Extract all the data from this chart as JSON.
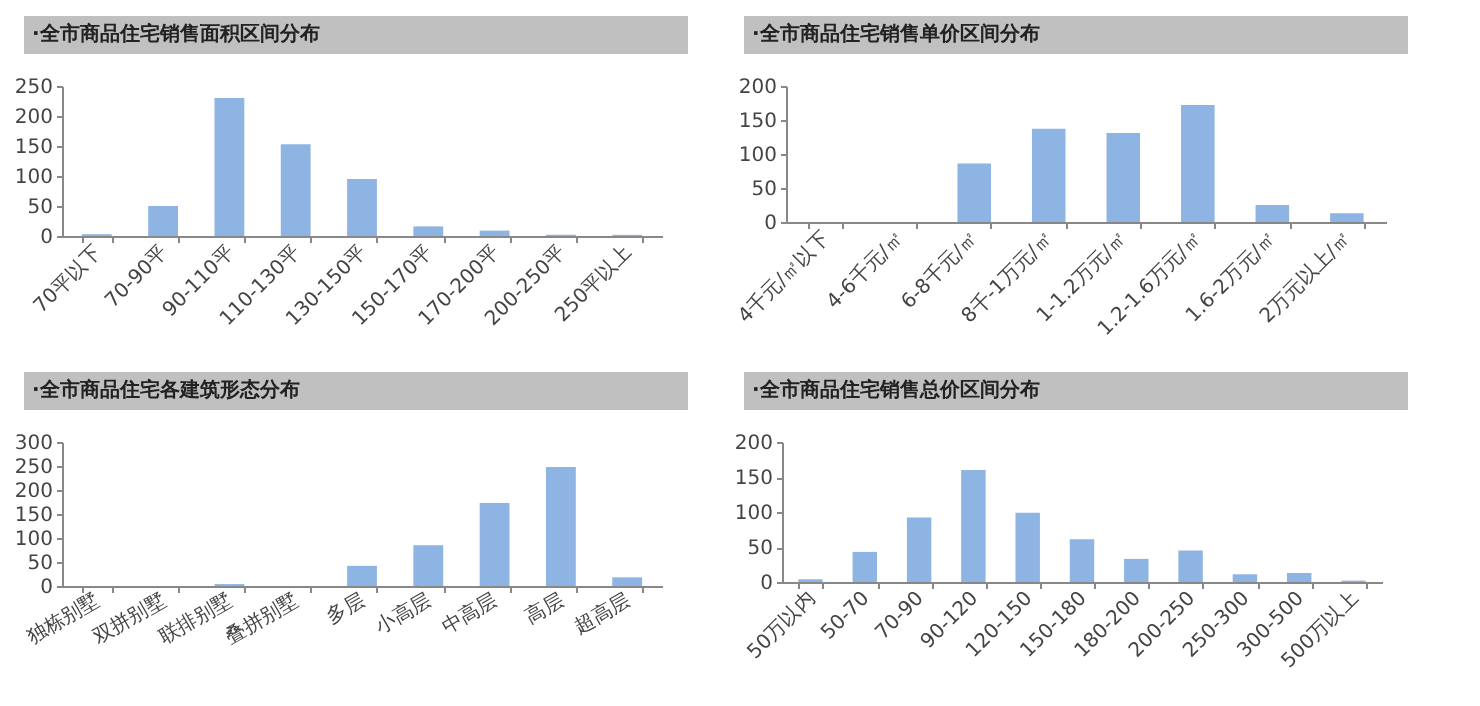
{
  "chart_data": [
    {
      "type": "bar",
      "title": "·全市商品住宅销售面积区间分布",
      "categories": [
        "70平以下",
        "70-90平",
        "90-110平",
        "110-130平",
        "130-150平",
        "150-170平",
        "170-200平",
        "200-250平",
        "250平以上"
      ],
      "values": [
        3,
        50,
        230,
        153,
        95,
        16,
        9,
        2,
        2
      ],
      "color": "#8db4e2",
      "ylim": [
        0,
        250
      ],
      "yticks": [
        0,
        50,
        100,
        150,
        200,
        250
      ],
      "grid": false,
      "legend": false
    },
    {
      "type": "bar",
      "title": "·全市商品住宅销售单价区间分布",
      "categories": [
        "4千元/㎡以下",
        "4-6千元/㎡",
        "6-8千元/㎡",
        "8千-1万元/㎡",
        "1-1.2万元/㎡",
        "1.2-1.6万元/㎡",
        "1.6-2万元/㎡",
        "2万元以上/㎡"
      ],
      "values": [
        0,
        0,
        86,
        137,
        131,
        172,
        25,
        13
      ],
      "color": "#8db4e2",
      "ylim": [
        0,
        200
      ],
      "yticks": [
        0,
        50,
        100,
        150,
        200
      ],
      "grid": false,
      "legend": false
    },
    {
      "type": "bar",
      "title": "·全市商品住宅各建筑形态分布",
      "categories": [
        "独栋别墅",
        "双拼别墅",
        "联排别墅",
        "叠拼别墅",
        "多层",
        "小高层",
        "中高层",
        "高层",
        "超高层"
      ],
      "values": [
        0,
        0,
        4,
        0,
        42,
        85,
        173,
        248,
        18
      ],
      "color": "#8db4e2",
      "ylim": [
        0,
        300
      ],
      "yticks": [
        0,
        50,
        100,
        150,
        200,
        250,
        300
      ],
      "grid": false,
      "legend": false
    },
    {
      "type": "bar",
      "title": "·全市商品住宅销售总价区间分布",
      "categories": [
        "50万以内",
        "50-70",
        "70-90",
        "90-120",
        "120-150",
        "150-180",
        "180-200",
        "200-250",
        "250-300",
        "300-500",
        "500万以上"
      ],
      "values": [
        4,
        43,
        92,
        160,
        99,
        61,
        33,
        45,
        11,
        13,
        2
      ],
      "color": "#8db4e2",
      "ylim": [
        0,
        200
      ],
      "yticks": [
        0,
        50,
        100,
        150,
        200
      ],
      "grid": false,
      "legend": false
    }
  ]
}
